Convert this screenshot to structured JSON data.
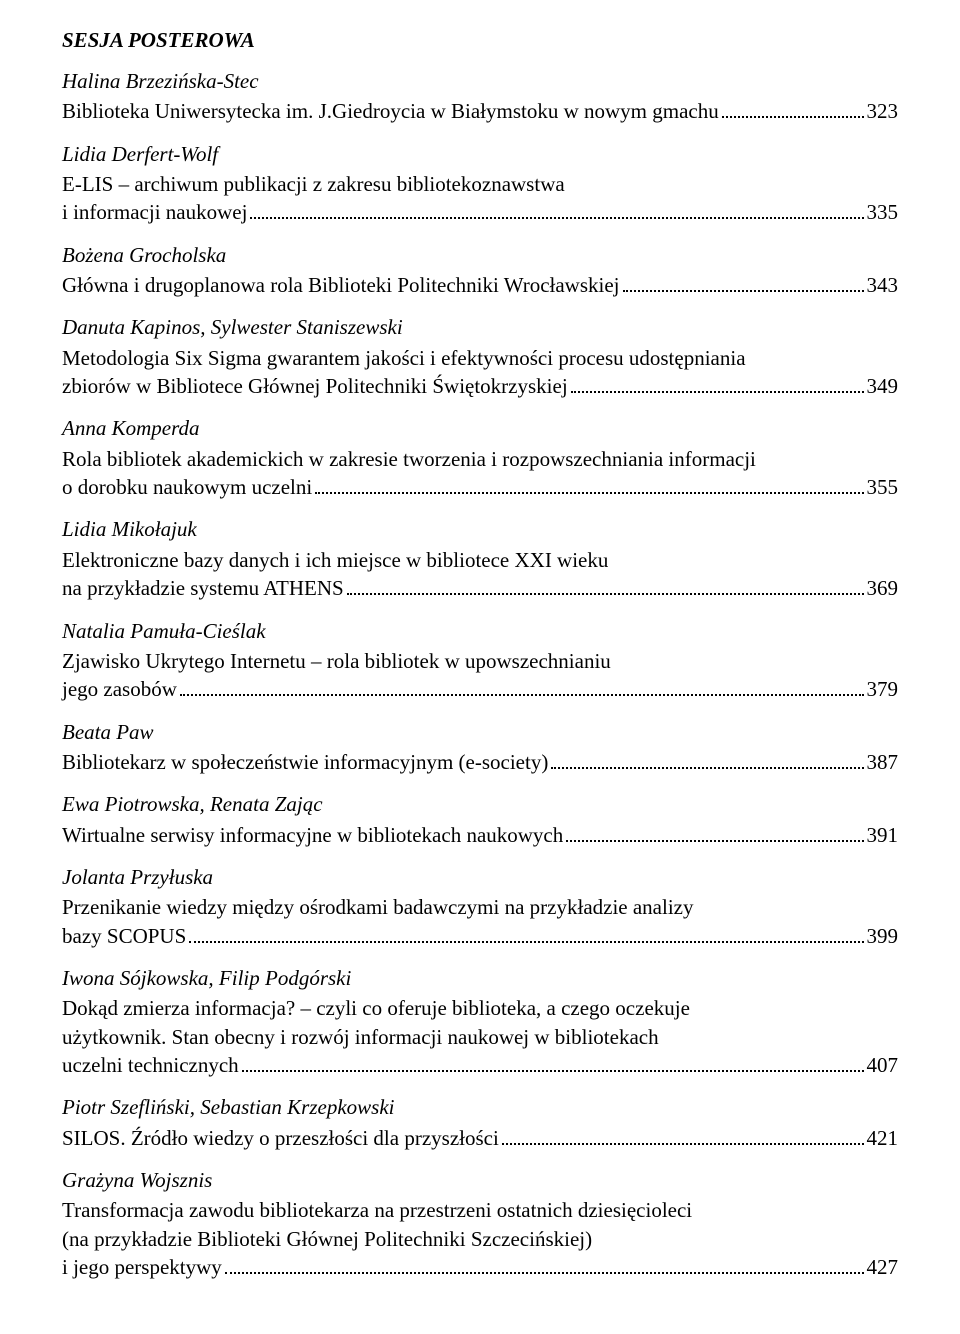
{
  "session": {
    "heading": "SESJA POSTEROWA"
  },
  "entries": [
    {
      "author": "Halina Brzezińska-Stec",
      "titlePrefix": "Biblioteka Uniwersytecka im. J.Giedroycia w Białymstoku w nowym gmachu",
      "page": "323"
    },
    {
      "author": "Lidia Derfert-Wolf",
      "titleCont": "E-LIS – archiwum publikacji z zakresu bibliotekoznawstwa",
      "titlePrefix": "i informacji naukowej",
      "page": "335"
    },
    {
      "author": "Bożena Grocholska",
      "titlePrefix": "Główna i drugoplanowa rola Biblioteki Politechniki Wrocławskiej",
      "page": "343"
    },
    {
      "author": "Danuta Kapinos, Sylwester Staniszewski",
      "titleCont": "Metodologia Six Sigma gwarantem jakości i efektywności procesu udostępniania",
      "titlePrefix": "zbiorów w Bibliotece Głównej Politechniki Świętokrzyskiej",
      "page": "349"
    },
    {
      "author": "Anna Komperda",
      "titleCont": "Rola bibliotek akademickich w zakresie tworzenia i rozpowszechniania informacji",
      "titlePrefix": "o dorobku naukowym uczelni",
      "page": "355"
    },
    {
      "author": "Lidia Mikołajuk",
      "titleCont": "Elektroniczne bazy danych i ich miejsce w bibliotece XXI wieku",
      "titlePrefix": "na przykładzie systemu ATHENS",
      "page": "369"
    },
    {
      "author": "Natalia Pamuła-Cieślak",
      "titleCont": "Zjawisko Ukrytego Internetu – rola bibliotek w upowszechnianiu",
      "titlePrefix": "jego zasobów",
      "page": "379"
    },
    {
      "author": "Beata Paw",
      "titlePrefix": "Bibliotekarz w społeczeństwie informacyjnym (e-society)",
      "page": "387"
    },
    {
      "author": "Ewa Piotrowska, Renata Zając",
      "titlePrefix": "Wirtualne serwisy informacyjne w bibliotekach naukowych",
      "page": "391"
    },
    {
      "author": "Jolanta Przyłuska",
      "titleCont": "Przenikanie wiedzy między ośrodkami badawczymi na przykładzie analizy",
      "titlePrefix": "bazy SCOPUS",
      "page": "399"
    },
    {
      "author": "Iwona Sójkowska, Filip Podgórski",
      "titleCont": "Dokąd zmierza informacja? – czyli co oferuje biblioteka, a czego oczekuje",
      "titleCont2": "użytkownik. Stan obecny i rozwój informacji naukowej w bibliotekach",
      "titlePrefix": "uczelni technicznych",
      "page": "407"
    },
    {
      "author": "Piotr Szefliński, Sebastian Krzepkowski",
      "titlePrefix": "SILOS. Źródło wiedzy o przeszłości dla przyszłości",
      "page": "421"
    },
    {
      "author": "Grażyna Wojsznis",
      "titleCont": "Transformacja zawodu bibliotekarza na przestrzeni ostatnich dziesięcioleci",
      "titleCont2": "(na przykładzie Biblioteki Głównej Politechniki Szczecińskiej)",
      "titlePrefix": "i jego perspektywy",
      "page": "427"
    }
  ]
}
